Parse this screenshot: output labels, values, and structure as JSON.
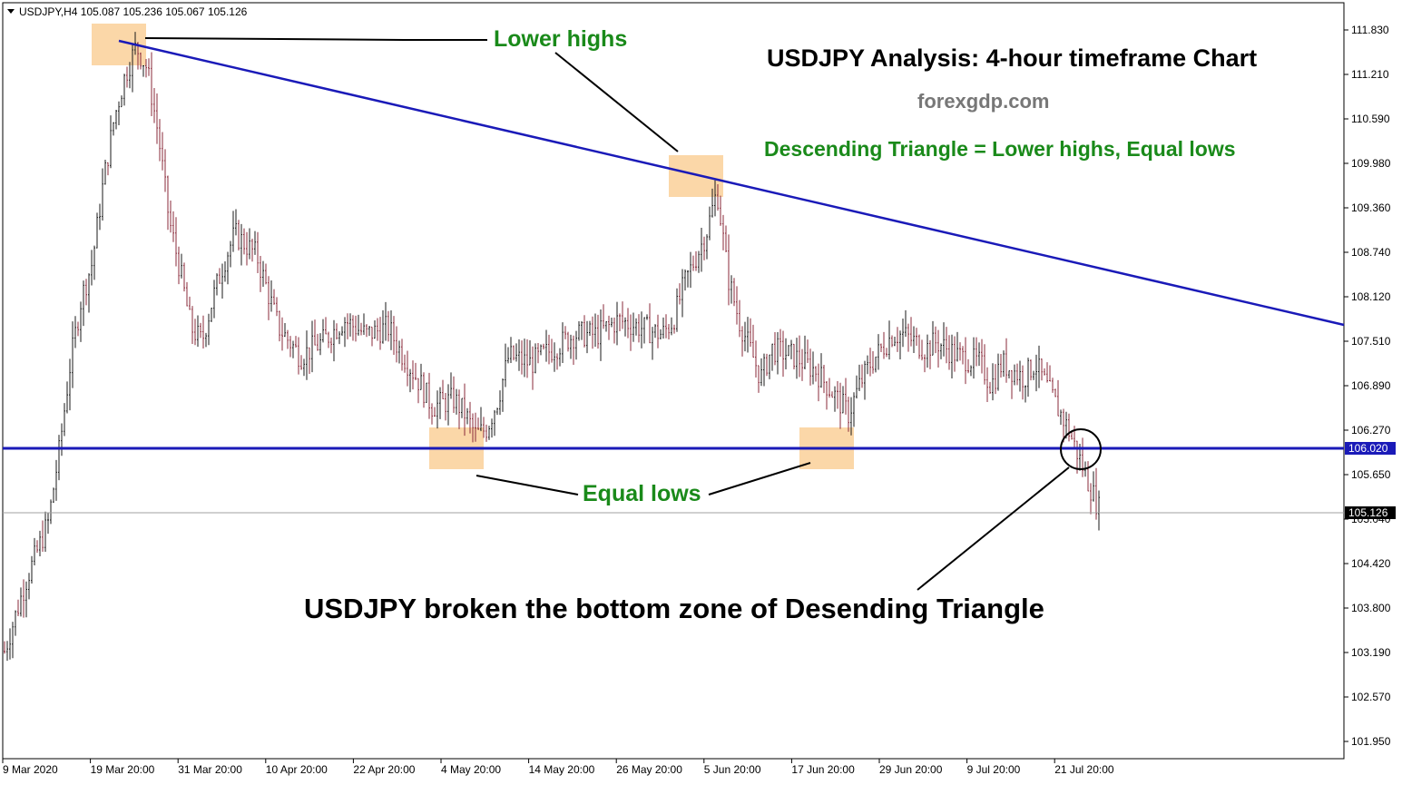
{
  "symbol_info": "USDJPY,H4  105.087 105.236 105.067 105.126",
  "title": "USDJPY Analysis: 4-hour timeframe Chart",
  "website": "forexgdp.com",
  "subtitle": "Descending Triangle = Lower highs, Equal lows",
  "annotations": {
    "lower_highs": "Lower highs",
    "equal_lows": "Equal lows",
    "breakout_note": "USDJPY broken the bottom zone of Desending Triangle"
  },
  "colors": {
    "trendline": "#1a1ab8",
    "support": "#1a1ab8",
    "zone": "#fbd7a8",
    "annotation_text": "#1a8a1a",
    "bars": "#8a2a3a",
    "current_price_line": "#a0a0a0"
  },
  "chart_data": {
    "type": "line",
    "title": "USDJPY Analysis: 4-hour timeframe Chart",
    "xlabel": "",
    "ylabel": "",
    "x_tick_labels": [
      "9 Mar 2020",
      "19 Mar 20:00",
      "31 Mar 20:00",
      "10 Apr 20:00",
      "22 Apr 20:00",
      "4 May 20:00",
      "14 May 20:00",
      "26 May 20:00",
      "5 Jun 20:00",
      "17 Jun 20:00",
      "29 Jun 20:00",
      "9 Jul 20:00",
      "21 Jul 20:00"
    ],
    "y_tick_labels": [
      "111.830",
      "111.210",
      "110.590",
      "109.980",
      "109.360",
      "108.740",
      "108.120",
      "107.510",
      "106.890",
      "106.270",
      "105.650",
      "105.040",
      "104.420",
      "103.800",
      "103.190",
      "102.570",
      "101.950"
    ],
    "ylim": [
      101.8,
      112.0
    ],
    "support_level": 106.02,
    "support_label": "106.020",
    "current_price": 105.126,
    "current_price_label": "105.126",
    "series": [
      {
        "values": [
          103.2,
          104.2,
          105.0,
          106.0,
          107.2,
          108.1,
          108.6,
          109.7,
          110.6,
          111.2,
          111.6,
          111.3,
          110.4,
          109.2,
          108.5,
          107.7,
          107.5,
          108.1,
          108.6,
          109.0,
          108.7,
          108.2,
          107.7,
          107.3,
          107.5,
          107.8,
          107.6,
          107.7,
          107.4,
          106.9,
          106.6,
          106.7,
          106.5,
          106.2,
          106.3,
          106.7,
          107.3,
          107.2,
          107.4,
          107.6,
          107.6,
          107.8,
          107.7,
          107.6,
          107.8,
          108.3,
          109.0,
          109.6,
          108.4,
          107.8,
          107.0,
          107.4,
          107.3,
          107.1,
          106.9,
          106.5,
          106.9,
          107.2,
          107.6,
          107.6,
          107.4,
          107.5,
          107.3,
          107.2,
          106.9,
          107.2,
          107.0,
          107.2,
          106.9,
          106.3,
          105.5,
          105.126
        ],
        "x_position": [
          0.0,
          0.02,
          0.04,
          0.05,
          0.06,
          0.07,
          0.08,
          0.09,
          0.1,
          0.11,
          0.12,
          0.13,
          0.14,
          0.15,
          0.16,
          0.17,
          0.18,
          0.19,
          0.2,
          0.21,
          0.23,
          0.24,
          0.25,
          0.27,
          0.29,
          0.31,
          0.33,
          0.35,
          0.36,
          0.38,
          0.39,
          0.41,
          0.42,
          0.43,
          0.44,
          0.45,
          0.46,
          0.48,
          0.5,
          0.52,
          0.54,
          0.56,
          0.58,
          0.6,
          0.61,
          0.62,
          0.64,
          0.65,
          0.66,
          0.67,
          0.69,
          0.7,
          0.72,
          0.74,
          0.75,
          0.77,
          0.78,
          0.79,
          0.81,
          0.82,
          0.84,
          0.85,
          0.87,
          0.89,
          0.9,
          0.91,
          0.93,
          0.94,
          0.95,
          0.97,
          0.99,
          1.0
        ]
      }
    ]
  }
}
